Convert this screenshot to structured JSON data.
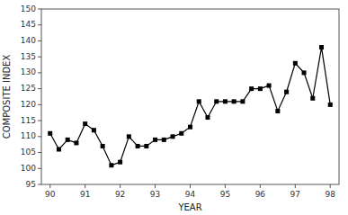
{
  "chart_data": {
    "type": "line",
    "x": [
      90.0,
      90.25,
      90.5,
      90.75,
      91.0,
      91.25,
      91.5,
      91.75,
      92.0,
      92.25,
      92.5,
      92.75,
      93.0,
      93.25,
      93.5,
      93.75,
      94.0,
      94.25,
      94.5,
      94.75,
      95.0,
      95.25,
      95.5,
      95.75,
      96.0,
      96.25,
      96.5,
      96.75,
      97.0,
      97.25,
      97.5,
      97.75,
      98.0
    ],
    "values": [
      111,
      106,
      109,
      108,
      114,
      112,
      107,
      101,
      102,
      110,
      107,
      107,
      109,
      109,
      110,
      111,
      113,
      121,
      116,
      121,
      121,
      121,
      121,
      125,
      125,
      126,
      118,
      124,
      133,
      130,
      122,
      138,
      120
    ],
    "xlabel": "YEAR",
    "ylabel": "COMPOSITE INDEX",
    "xlim": [
      89.75,
      98.25
    ],
    "ylim": [
      95,
      150
    ],
    "xticks": [
      90,
      91,
      92,
      93,
      94,
      95,
      96,
      97,
      98
    ],
    "yticks": [
      95,
      100,
      105,
      110,
      115,
      120,
      125,
      130,
      135,
      140,
      145,
      150
    ],
    "color": "#000000",
    "marker": "square"
  }
}
